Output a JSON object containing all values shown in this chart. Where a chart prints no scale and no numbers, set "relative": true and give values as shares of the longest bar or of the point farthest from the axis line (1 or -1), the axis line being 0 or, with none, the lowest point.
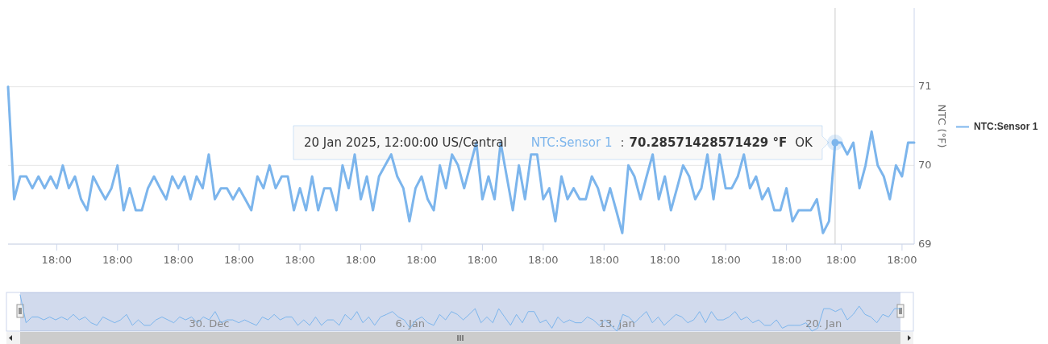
{
  "chart_data": [
    {
      "type": "line",
      "ylabel": "NTC (°F)",
      "ylim": [
        69,
        72
      ],
      "yticks": [
        69,
        70,
        71
      ],
      "grid": "y",
      "legend": "right",
      "marker": "none",
      "line_style": "solid",
      "categories": [
        null,
        null,
        null,
        null,
        null,
        null,
        null,
        null,
        "18:00",
        null,
        null,
        null,
        null,
        null,
        null,
        null,
        null,
        null,
        "18:00",
        null,
        null,
        null,
        null,
        null,
        null,
        null,
        null,
        null,
        "18:00",
        null,
        null,
        null,
        null,
        null,
        null,
        null,
        null,
        null,
        "18:00",
        null,
        null,
        null,
        null,
        null,
        null,
        null,
        null,
        null,
        "18:00",
        null,
        null,
        null,
        null,
        null,
        null,
        null,
        null,
        null,
        "18:00",
        null,
        null,
        null,
        null,
        null,
        null,
        null,
        null,
        null,
        "18:00",
        null,
        null,
        null,
        null,
        null,
        null,
        null,
        null,
        null,
        "18:00",
        null,
        null,
        null,
        null,
        null,
        null,
        null,
        null,
        null,
        "18:00",
        null,
        null,
        null,
        null,
        null,
        null,
        null,
        null,
        null,
        "18:00",
        null,
        null,
        null,
        null,
        null,
        null,
        null,
        null,
        null,
        "18:00",
        null,
        null,
        null,
        null,
        null,
        null,
        null,
        null,
        null,
        "18:00",
        null,
        null,
        null,
        null,
        null,
        null,
        null,
        null,
        null,
        "18:00",
        null,
        null,
        null,
        null,
        null,
        null,
        null,
        null,
        "18:00",
        null,
        null,
        null,
        null,
        null,
        null,
        null,
        null,
        null,
        "18:00",
        null,
        null
      ],
      "series": [
        {
          "name": "NTC:Sensor 1",
          "color": "#7cb5ec",
          "values": [
            71.0,
            69.57,
            69.86,
            69.86,
            69.71,
            69.86,
            69.71,
            69.86,
            69.71,
            70.0,
            69.71,
            69.86,
            69.57,
            69.43,
            69.86,
            69.71,
            69.57,
            69.71,
            70.0,
            69.43,
            69.71,
            69.43,
            69.43,
            69.71,
            69.86,
            69.71,
            69.57,
            69.86,
            69.71,
            69.86,
            69.57,
            69.86,
            69.71,
            70.14,
            69.57,
            69.71,
            69.71,
            69.57,
            69.71,
            69.57,
            69.43,
            69.86,
            69.71,
            70.0,
            69.71,
            69.86,
            69.86,
            69.43,
            69.71,
            69.43,
            69.86,
            69.43,
            69.71,
            69.71,
            69.43,
            70.0,
            69.71,
            70.14,
            69.57,
            69.86,
            69.43,
            69.86,
            70.0,
            70.14,
            69.86,
            69.71,
            69.29,
            69.71,
            69.86,
            69.57,
            69.43,
            70.0,
            69.71,
            70.14,
            70.0,
            69.71,
            70.0,
            70.29,
            69.57,
            69.86,
            69.57,
            70.29,
            69.86,
            69.43,
            70.0,
            69.57,
            70.14,
            70.14,
            69.57,
            69.71,
            69.29,
            69.86,
            69.57,
            69.71,
            69.57,
            69.57,
            69.86,
            69.71,
            69.43,
            69.71,
            69.43,
            69.14,
            70.0,
            69.86,
            69.57,
            69.86,
            70.14,
            69.57,
            69.86,
            69.43,
            69.71,
            70.0,
            69.86,
            69.57,
            69.71,
            70.14,
            69.57,
            70.14,
            69.71,
            69.71,
            69.86,
            70.14,
            69.71,
            69.86,
            69.57,
            69.71,
            69.43,
            69.43,
            69.71,
            69.29,
            69.43,
            69.43,
            69.43,
            69.57,
            69.14,
            69.29,
            70.29,
            70.29,
            70.14,
            70.29,
            69.71,
            70.0,
            70.43,
            70.0,
            69.86,
            69.57,
            70.0,
            69.86,
            70.29,
            70.29
          ]
        }
      ],
      "annotations": [
        "20 Jan 2025, 12:00:00 US/Central",
        "NTC:Sensor 1",
        ":",
        "70.28571428571429 °F",
        "OK"
      ]
    },
    {
      "type": "line",
      "relative": true,
      "tick_labels": "x",
      "categories": [
        null,
        null,
        null,
        null,
        null,
        null,
        null,
        null,
        null,
        null,
        null,
        null,
        null,
        null,
        null,
        null,
        null,
        null,
        null,
        null,
        null,
        null,
        null,
        null,
        null,
        null,
        null,
        null,
        null,
        null,
        null,
        null,
        "30. Dec",
        null,
        null,
        null,
        null,
        null,
        null,
        null,
        null,
        null,
        null,
        null,
        null,
        null,
        null,
        null,
        null,
        null,
        null,
        null,
        null,
        null,
        null,
        null,
        null,
        null,
        null,
        null,
        null,
        null,
        null,
        null,
        null,
        null,
        "6. Jan",
        null,
        null,
        null,
        null,
        null,
        null,
        null,
        null,
        null,
        null,
        null,
        null,
        null,
        null,
        null,
        null,
        null,
        null,
        null,
        null,
        null,
        null,
        null,
        null,
        null,
        null,
        null,
        null,
        null,
        null,
        null,
        null,
        null,
        null,
        "13. Jan",
        null,
        null,
        null,
        null,
        null,
        null,
        null,
        null,
        null,
        null,
        null,
        null,
        null,
        null,
        null,
        null,
        null,
        null,
        null,
        null,
        null,
        null,
        null,
        null,
        null,
        null,
        null,
        null,
        null,
        null,
        null,
        null,
        null,
        null,
        "20. Jan",
        null,
        null,
        null,
        null,
        null,
        null,
        null,
        null,
        null,
        null,
        null,
        null,
        null
      ],
      "series": [
        {
          "color": "#7cb5ec",
          "values": [
            1,
            0.23,
            0.39,
            0.39,
            0.31,
            0.39,
            0.31,
            0.39,
            0.31,
            0.46,
            0.31,
            0.39,
            0.23,
            0.16,
            0.39,
            0.31,
            0.23,
            0.31,
            0.46,
            0.16,
            0.31,
            0.16,
            0.16,
            0.31,
            0.39,
            0.31,
            0.23,
            0.39,
            0.31,
            0.39,
            0.23,
            0.39,
            0.31,
            0.54,
            0.23,
            0.31,
            0.31,
            0.23,
            0.31,
            0.23,
            0.16,
            0.39,
            0.31,
            0.46,
            0.31,
            0.39,
            0.39,
            0.16,
            0.31,
            0.16,
            0.39,
            0.16,
            0.31,
            0.31,
            0.16,
            0.46,
            0.31,
            0.54,
            0.23,
            0.39,
            0.16,
            0.39,
            0.46,
            0.54,
            0.39,
            0.31,
            0.08,
            0.31,
            0.39,
            0.23,
            0.16,
            0.46,
            0.31,
            0.54,
            0.46,
            0.31,
            0.46,
            0.62,
            0.23,
            0.39,
            0.23,
            0.62,
            0.39,
            0.16,
            0.46,
            0.23,
            0.54,
            0.54,
            0.23,
            0.31,
            0.08,
            0.39,
            0.23,
            0.31,
            0.23,
            0.23,
            0.39,
            0.31,
            0.16,
            0.31,
            0.16,
            0,
            0.46,
            0.39,
            0.23,
            0.39,
            0.54,
            0.23,
            0.39,
            0.16,
            0.31,
            0.46,
            0.39,
            0.23,
            0.31,
            0.54,
            0.23,
            0.54,
            0.31,
            0.31,
            0.39,
            0.54,
            0.31,
            0.39,
            0.23,
            0.31,
            0.16,
            0.16,
            0.31,
            0.08,
            0.16,
            0.16,
            0.16,
            0.23,
            0,
            0.08,
            0.62,
            0.62,
            0.54,
            0.62,
            0.31,
            0.46,
            0.69,
            0.46,
            0.39,
            0.23,
            0.46,
            0.39,
            0.62,
            0.62
          ]
        }
      ]
    }
  ]
}
